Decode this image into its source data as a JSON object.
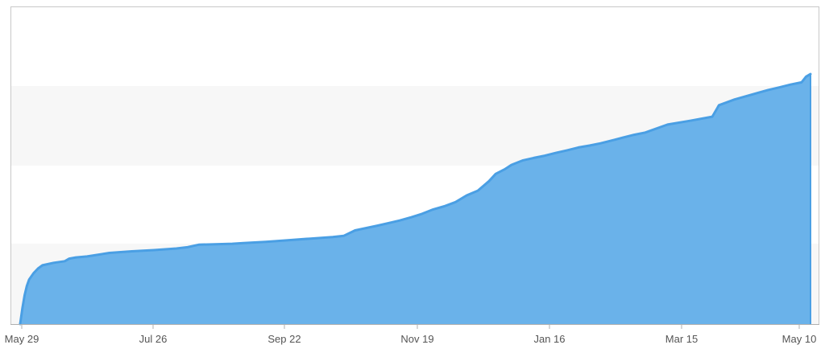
{
  "chart_data": {
    "type": "area",
    "title": "",
    "xlabel": "",
    "ylabel": "",
    "x_tick_labels": [
      "May 29",
      "Jul 26",
      "Sep 22",
      "Nov 19",
      "Jan 16",
      "Mar 15",
      "May 10"
    ],
    "y_range": [
      0,
      100
    ],
    "grid": "alternating horizontal bands",
    "legend": "none",
    "series": [
      {
        "x": [
          0,
          1,
          2,
          3,
          4,
          6,
          8,
          10,
          15,
          20,
          22,
          25,
          30,
          40,
          50,
          60,
          70,
          75,
          80,
          95,
          100,
          110,
          120,
          130,
          140,
          145,
          150,
          160,
          165,
          170,
          175,
          180,
          185,
          190,
          195,
          200,
          205,
          210,
          213,
          217,
          220,
          225,
          230,
          235,
          240,
          245,
          250,
          255,
          260,
          265,
          270,
          275,
          280,
          290,
          300,
          310,
          313,
          320,
          330,
          335,
          340,
          345,
          350,
          352,
          354
        ],
        "y": [
          0,
          5,
          9,
          12,
          14,
          16,
          17.5,
          18.5,
          19.3,
          19.8,
          20.6,
          21,
          21.3,
          22.4,
          22.9,
          23.3,
          23.8,
          24.2,
          25,
          25.3,
          25.5,
          25.9,
          26.4,
          26.9,
          27.4,
          27.8,
          29.5,
          31,
          31.8,
          32.6,
          33.6,
          34.7,
          36.1,
          37.1,
          38.4,
          40.5,
          42,
          45,
          47.3,
          48.7,
          50.1,
          51.5,
          52.3,
          53,
          53.9,
          54.7,
          55.6,
          56.2,
          56.9,
          57.8,
          58.7,
          59.6,
          60.3,
          62.8,
          64,
          65.3,
          68.9,
          70.7,
          72.7,
          73.7,
          74.5,
          75.4,
          76.1,
          77.9,
          78.7
        ],
        "color": "#6ab2ea",
        "line_color": "#4a9fe4"
      }
    ]
  }
}
